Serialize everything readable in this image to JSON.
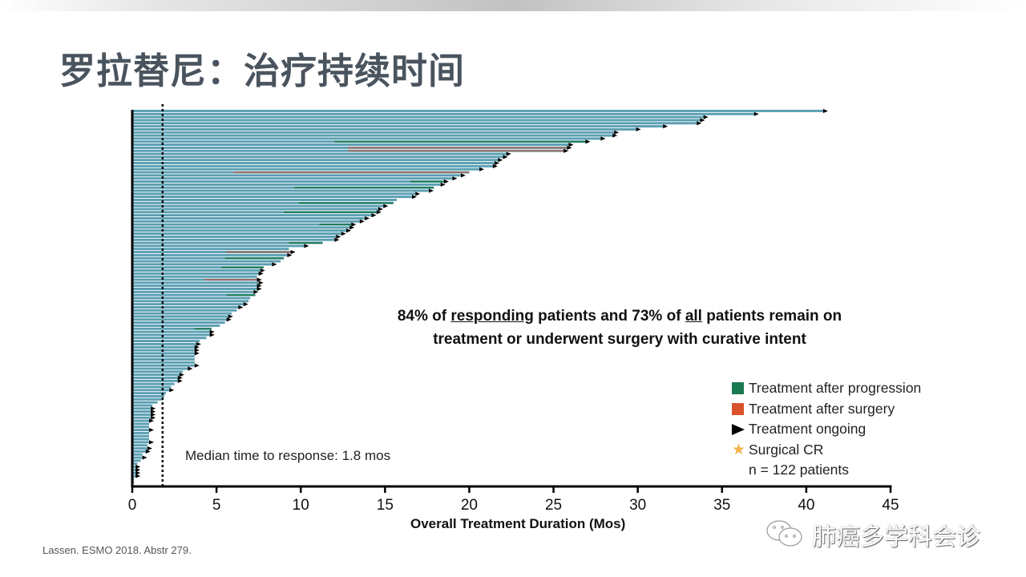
{
  "slide": {
    "title": "罗拉替尼：治疗持续时间",
    "annotation_line1_parts": [
      "84% of ",
      "responding",
      " patients and 73% of ",
      "all",
      " patients remain on"
    ],
    "annotation_line2": "treatment or underwent surgery with curative intent",
    "median_text": "Median time to response: 1.8 mos",
    "citation": "Lassen. ESMO 2018. Abstr 279.",
    "watermark": "肺癌多学科会诊"
  },
  "legend": {
    "items": [
      {
        "label": "Treatment after progression",
        "icon": "green-square",
        "color": "#1a7a50"
      },
      {
        "label": "Treatment after surgery",
        "icon": "orange-square",
        "color": "#d9522b"
      },
      {
        "label": "Treatment ongoing",
        "icon": "black-triangle",
        "color": "#000000"
      },
      {
        "label": "Surgical CR",
        "icon": "star",
        "color": "#f0b44a"
      }
    ],
    "n_text": "n = 122 patients"
  },
  "chart_data": {
    "type": "bar",
    "orientation": "horizontal",
    "title": "",
    "xlabel": "Overall Treatment Duration (Mos)",
    "ylabel": "",
    "xlim": [
      0,
      45
    ],
    "xticks": [
      0,
      5,
      10,
      15,
      20,
      25,
      30,
      35,
      40,
      45
    ],
    "grid": false,
    "median_response_line": 1.8,
    "colors": {
      "treatment": "#5b9fb2",
      "progression": "#1a7a50",
      "surgery": "#a86a5e",
      "axis": "#000000"
    },
    "n_patients": 122,
    "patients": [
      {
        "end": 41.0,
        "ongoing": true
      },
      {
        "end": 36.9,
        "ongoing": true
      },
      {
        "end": 33.9,
        "ongoing": true
      },
      {
        "end": 33.7,
        "ongoing": true
      },
      {
        "end": 33.5,
        "ongoing": true
      },
      {
        "end": 31.5,
        "ongoing": true
      },
      {
        "end": 29.9,
        "ongoing": true
      },
      {
        "end": 28.6,
        "ongoing": true
      },
      {
        "end": 28.5,
        "ongoing": true
      },
      {
        "end": 27.8,
        "ongoing": true
      },
      {
        "end": 26.9,
        "ongoing": true,
        "prog_start": 12.0
      },
      {
        "end": 25.9,
        "ongoing": true
      },
      {
        "end": 25.8,
        "ongoing": true,
        "surg_start": 12.8
      },
      {
        "end": 25.6,
        "ongoing": true,
        "surg_start": 12.8
      },
      {
        "end": 22.2,
        "ongoing": true
      },
      {
        "end": 22.0,
        "ongoing": true
      },
      {
        "end": 21.7,
        "ongoing": true
      },
      {
        "end": 21.5,
        "ongoing": true
      },
      {
        "end": 21.4,
        "ongoing": true
      },
      {
        "end": 20.6,
        "ongoing": true
      },
      {
        "end": 20.0,
        "ongoing": false,
        "surg_start": 6.0
      },
      {
        "end": 19.5,
        "ongoing": true
      },
      {
        "end": 19.0,
        "ongoing": true
      },
      {
        "end": 18.5,
        "ongoing": true,
        "prog_start": 16.5
      },
      {
        "end": 18.3,
        "ongoing": true
      },
      {
        "end": 17.9,
        "ongoing": false,
        "prog_start": 9.6
      },
      {
        "end": 17.6,
        "ongoing": true
      },
      {
        "end": 16.8,
        "ongoing": true
      },
      {
        "end": 16.6,
        "ongoing": true
      },
      {
        "end": 15.7,
        "ongoing": false
      },
      {
        "end": 15.5,
        "ongoing": false,
        "prog_start": 9.9
      },
      {
        "end": 14.9,
        "ongoing": true
      },
      {
        "end": 14.6,
        "ongoing": true
      },
      {
        "end": 14.5,
        "ongoing": true,
        "prog_start": 9.0
      },
      {
        "end": 14.2,
        "ongoing": true
      },
      {
        "end": 13.8,
        "ongoing": true
      },
      {
        "end": 13.5,
        "ongoing": true
      },
      {
        "end": 13.0,
        "ongoing": true,
        "prog_start": 11.1
      },
      {
        "end": 12.9,
        "ongoing": true
      },
      {
        "end": 12.7,
        "ongoing": true
      },
      {
        "end": 12.4,
        "ongoing": true
      },
      {
        "end": 12.1,
        "ongoing": true
      },
      {
        "end": 12.0,
        "ongoing": true
      },
      {
        "end": 11.3,
        "ongoing": false,
        "prog_start": 9.3
      },
      {
        "end": 10.2,
        "ongoing": true
      },
      {
        "end": 9.3,
        "ongoing": false
      },
      {
        "end": 9.4,
        "ongoing": true,
        "surg_start": 5.6
      },
      {
        "end": 9.2,
        "ongoing": true
      },
      {
        "end": 9.0,
        "ongoing": false,
        "prog_start": 5.5
      },
      {
        "end": 8.8,
        "ongoing": false
      },
      {
        "end": 8.3,
        "ongoing": true
      },
      {
        "end": 7.8,
        "ongoing": false,
        "prog_start": 5.3
      },
      {
        "end": 7.6,
        "ongoing": true
      },
      {
        "end": 7.5,
        "ongoing": true
      },
      {
        "end": 7.4,
        "ongoing": false
      },
      {
        "end": 7.4,
        "ongoing": true,
        "surg_start": 4.3
      },
      {
        "end": 7.5,
        "ongoing": true
      },
      {
        "end": 7.4,
        "ongoing": true
      },
      {
        "end": 7.4,
        "ongoing": true
      },
      {
        "end": 7.2,
        "ongoing": true
      },
      {
        "end": 7.3,
        "ongoing": false,
        "prog_start": 5.6
      },
      {
        "end": 7.0,
        "ongoing": false
      },
      {
        "end": 6.9,
        "ongoing": false
      },
      {
        "end": 6.6,
        "ongoing": true
      },
      {
        "end": 6.3,
        "ongoing": true
      },
      {
        "end": 6.2,
        "ongoing": false
      },
      {
        "end": 5.9,
        "ongoing": false
      },
      {
        "end": 5.7,
        "ongoing": true
      },
      {
        "end": 5.6,
        "ongoing": true
      },
      {
        "end": 5.5,
        "ongoing": false
      },
      {
        "end": 5.2,
        "ongoing": false
      },
      {
        "end": 4.7,
        "ongoing": false,
        "prog_start": 3.7
      },
      {
        "end": 4.6,
        "ongoing": true
      },
      {
        "end": 4.6,
        "ongoing": true
      },
      {
        "end": 4.4,
        "ongoing": false
      },
      {
        "end": 4.0,
        "ongoing": false
      },
      {
        "end": 3.8,
        "ongoing": true
      },
      {
        "end": 3.7,
        "ongoing": true
      },
      {
        "end": 3.7,
        "ongoing": true
      },
      {
        "end": 3.7,
        "ongoing": true
      },
      {
        "end": 3.7,
        "ongoing": false
      },
      {
        "end": 3.7,
        "ongoing": false
      },
      {
        "end": 3.7,
        "ongoing": false
      },
      {
        "end": 3.7,
        "ongoing": true
      },
      {
        "end": 3.3,
        "ongoing": true
      },
      {
        "end": 3.0,
        "ongoing": false
      },
      {
        "end": 2.8,
        "ongoing": true
      },
      {
        "end": 2.7,
        "ongoing": true
      },
      {
        "end": 2.7,
        "ongoing": true
      },
      {
        "end": 2.5,
        "ongoing": false
      },
      {
        "end": 2.3,
        "ongoing": false
      },
      {
        "end": 2.2,
        "ongoing": true
      },
      {
        "end": 2.0,
        "ongoing": false
      },
      {
        "end": 1.9,
        "ongoing": false
      },
      {
        "end": 1.8,
        "ongoing": false
      },
      {
        "end": 1.5,
        "ongoing": false
      },
      {
        "end": 1.2,
        "ongoing": false
      },
      {
        "end": 1.1,
        "ongoing": true
      },
      {
        "end": 1.1,
        "ongoing": true
      },
      {
        "end": 1.1,
        "ongoing": true
      },
      {
        "end": 1.1,
        "ongoing": true
      },
      {
        "end": 1.0,
        "ongoing": true
      },
      {
        "end": 1.0,
        "ongoing": false
      },
      {
        "end": 1.0,
        "ongoing": false
      },
      {
        "end": 1.0,
        "ongoing": true
      },
      {
        "end": 1.0,
        "ongoing": false
      },
      {
        "end": 1.0,
        "ongoing": false
      },
      {
        "end": 1.0,
        "ongoing": false
      },
      {
        "end": 1.0,
        "ongoing": true
      },
      {
        "end": 0.9,
        "ongoing": false
      },
      {
        "end": 0.9,
        "ongoing": true
      },
      {
        "end": 0.8,
        "ongoing": true
      },
      {
        "end": 0.6,
        "ongoing": false
      },
      {
        "end": 0.6,
        "ongoing": true
      },
      {
        "end": 0.5,
        "ongoing": false
      },
      {
        "end": 0.3,
        "ongoing": false
      },
      {
        "end": 0.2,
        "ongoing": true
      },
      {
        "end": 0.2,
        "ongoing": true
      },
      {
        "end": 0.2,
        "ongoing": true
      },
      {
        "end": 0.2,
        "ongoing": true
      },
      {
        "end": 0.1,
        "ongoing": false
      },
      {
        "end": 0.1,
        "ongoing": false
      }
    ]
  }
}
